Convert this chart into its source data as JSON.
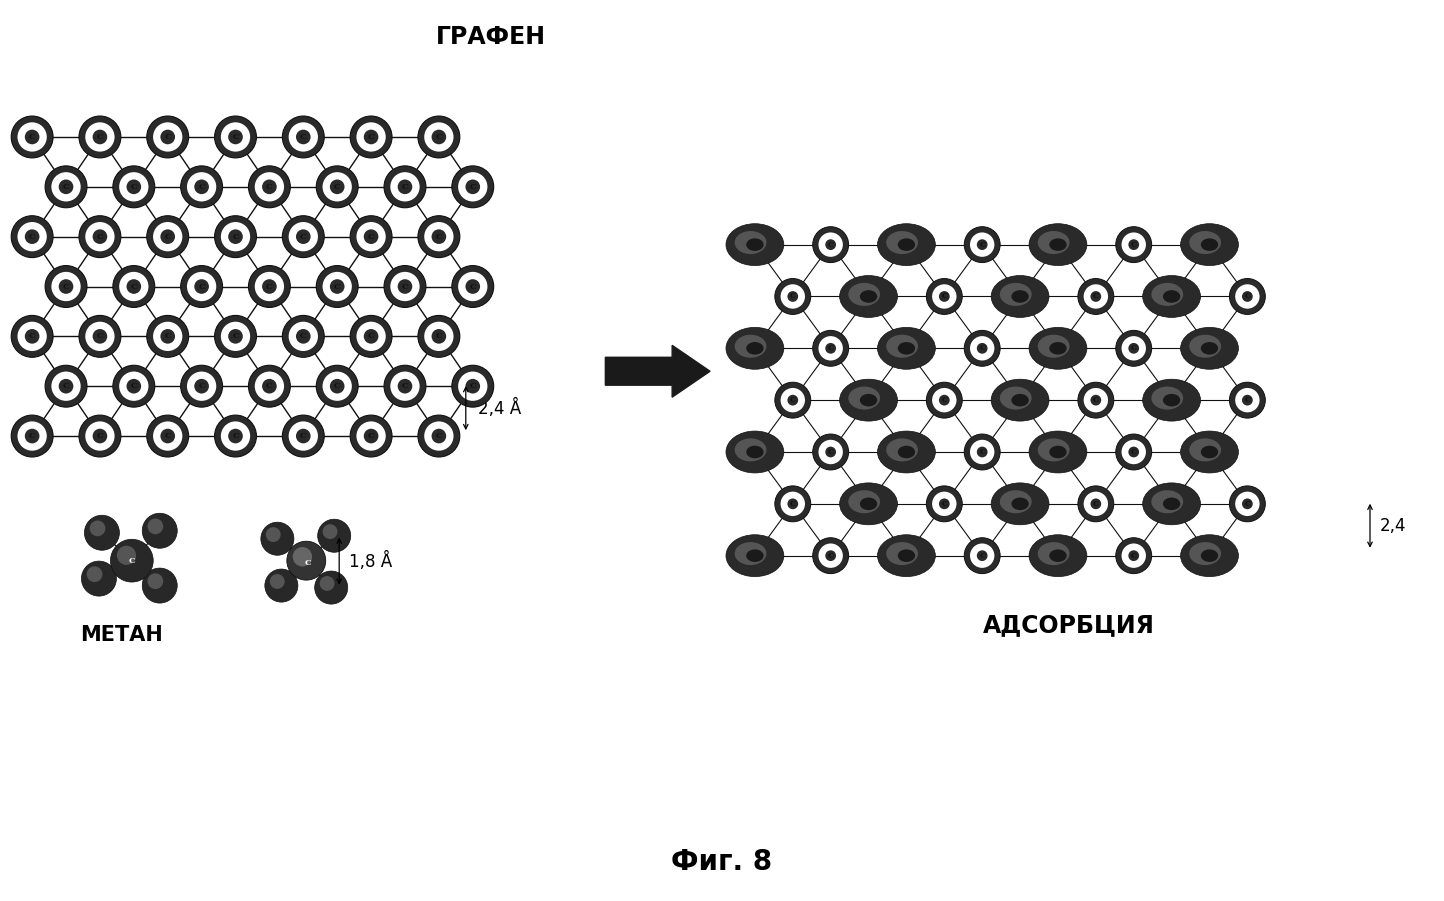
{
  "title": "Фиг. 8",
  "label_graphene": "ГРАФЕН",
  "label_methane": "МЕТАН",
  "label_adsorption": "АДСОРБЦИЯ",
  "label_2_4_graphene": "2,4 Å",
  "label_1_8": "1,8 Å",
  "label_2_4_ads": "2,4",
  "bg_color": "#ffffff",
  "dark_color": "#1a1a1a",
  "gray_color": "#888888",
  "med_gray": "#555555",
  "light_gray": "#cccccc",
  "bond_color": "#111111",
  "arrow_color": "#1a1a1a",
  "fig_caption_fontsize": 20,
  "label_fontsize": 17,
  "annotation_fontsize": 12
}
